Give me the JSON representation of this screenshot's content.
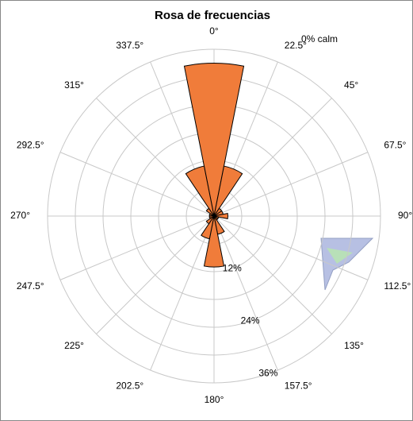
{
  "chart_data": {
    "type": "windrose",
    "title": "Rosa de frecuencias",
    "annotation": "0% calm",
    "categories": [
      "0°",
      "22.5°",
      "45°",
      "67.5°",
      "90°",
      "112.5°",
      "135°",
      "157.5°",
      "180°",
      "202.5°",
      "225°",
      "247.5°",
      "270°",
      "292.5°",
      "315°",
      "337.5°"
    ],
    "values": [
      33,
      11,
      2,
      2,
      3,
      1,
      1,
      4,
      11,
      5,
      2,
      1,
      1,
      1,
      2,
      11
    ],
    "color": "#f07c3a",
    "rlim": [
      0,
      36
    ],
    "rgrid": [
      6,
      12,
      18,
      24,
      30,
      36
    ],
    "rticks": [
      {
        "value": 12,
        "label": "12%"
      },
      {
        "value": 24,
        "label": "24%"
      },
      {
        "value": 36,
        "label": "36%"
      }
    ]
  }
}
